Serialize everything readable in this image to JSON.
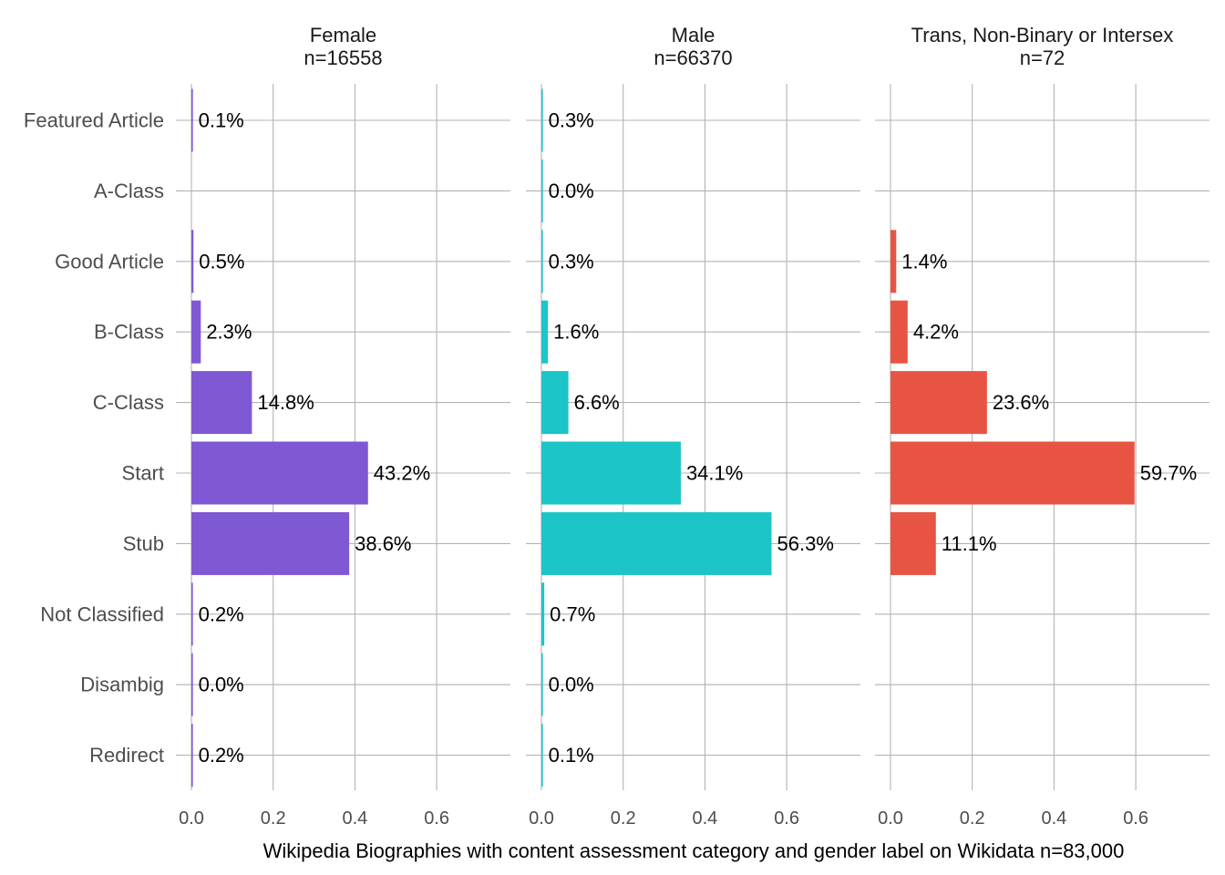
{
  "chart_data": {
    "type": "bar",
    "orientation": "horizontal",
    "faceted": true,
    "xlabel": "Wikipedia Biographies with content assessment category and gender label on Wikidata n=83,000",
    "xlim": [
      0,
      0.75
    ],
    "xticks": [
      "0.0",
      "0.2",
      "0.4",
      "0.6"
    ],
    "xtick_values": [
      0,
      0.2,
      0.4,
      0.6
    ],
    "grid": true,
    "categories": [
      "Featured Article",
      "A-Class",
      "Good Article",
      "B-Class",
      "C-Class",
      "Start",
      "Stub",
      "Not Classified",
      "Disambig",
      "Redirect"
    ],
    "panels": [
      {
        "title": "Female",
        "subtitle": "n=16558",
        "color": "#7F58D3",
        "values": [
          0.001,
          null,
          0.005,
          0.023,
          0.148,
          0.432,
          0.386,
          0.002,
          0.0,
          0.002
        ],
        "labels": [
          "0.1%",
          "",
          "0.5%",
          "2.3%",
          "14.8%",
          "43.2%",
          "38.6%",
          "0.2%",
          "0.0%",
          "0.2%"
        ]
      },
      {
        "title": "Male",
        "subtitle": "n=66370",
        "color": "#1CC5C7",
        "values": [
          0.003,
          0.0,
          0.003,
          0.016,
          0.066,
          0.341,
          0.563,
          0.007,
          0.0,
          0.001
        ],
        "labels": [
          "0.3%",
          "0.0%",
          "0.3%",
          "1.6%",
          "6.6%",
          "34.1%",
          "56.3%",
          "0.7%",
          "0.0%",
          "0.1%"
        ]
      },
      {
        "title": "Trans, Non-Binary or Intersex",
        "subtitle": "n=72",
        "color": "#E85443",
        "values": [
          null,
          null,
          0.014,
          0.042,
          0.236,
          0.597,
          0.111,
          null,
          null,
          null
        ],
        "labels": [
          "",
          "",
          "1.4%",
          "4.2%",
          "23.6%",
          "59.7%",
          "11.1%",
          "",
          "",
          ""
        ]
      }
    ]
  }
}
